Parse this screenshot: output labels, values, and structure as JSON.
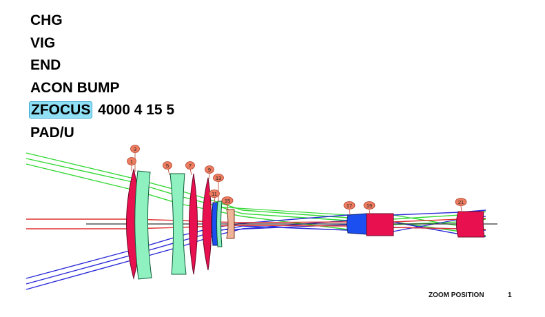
{
  "commands": [
    {
      "keyword": "CHG",
      "args": ""
    },
    {
      "keyword": "VIG",
      "args": ""
    },
    {
      "keyword": "END",
      "args": ""
    },
    {
      "keyword": "ACON BUMP",
      "args": ""
    },
    {
      "keyword": "ZFOCUS",
      "args": "4000 4 15 5",
      "highlighted": true
    },
    {
      "keyword": "PAD/U",
      "args": ""
    }
  ],
  "surface_labels": [
    "1",
    "3",
    "5",
    "7",
    "9",
    "11",
    "13",
    "15",
    "17",
    "19",
    "21"
  ],
  "zoom": {
    "label": "ZOOM POSITION",
    "value": "1"
  },
  "colors": {
    "lens_red": "#e8104e",
    "lens_green": "#8ff0c0",
    "lens_blue": "#1c4ff0",
    "lens_salmon": "#f0b49a",
    "label_bubble": "#ee7c60",
    "ray_green": "#33d833",
    "ray_blue": "#2a2ad8",
    "ray_red": "#e03030",
    "axis": "#333333",
    "highlight": "#8fdff5"
  }
}
